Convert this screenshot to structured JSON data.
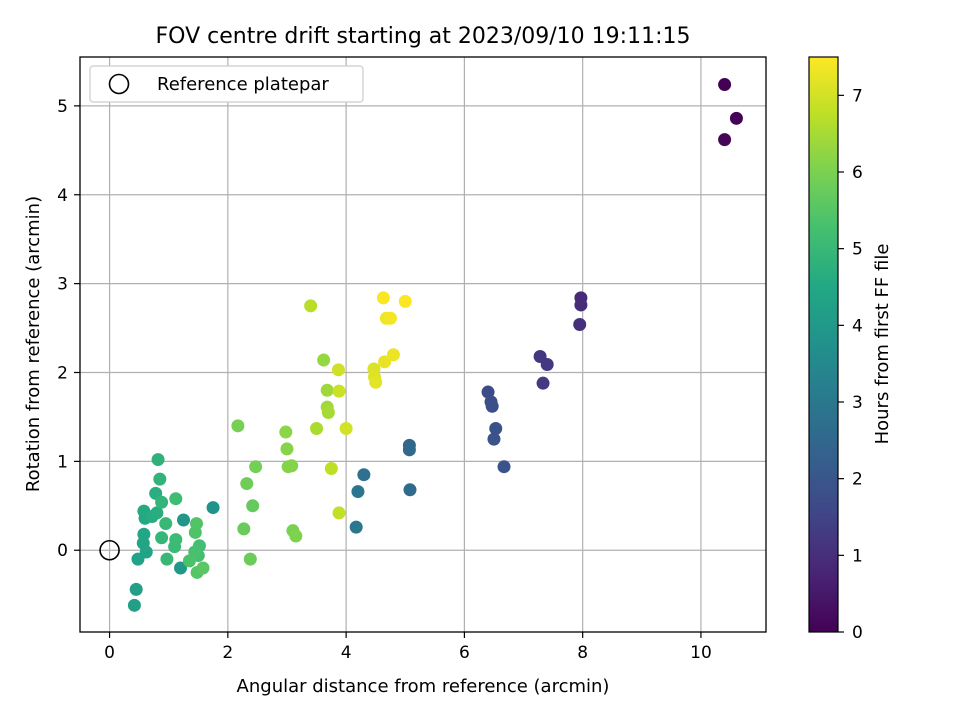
{
  "chart_data": {
    "type": "scatter",
    "title": "FOV centre drift starting at 2023/09/10 19:11:15",
    "xlabel": "Angular distance from reference (arcmin)",
    "ylabel": "Rotation from reference (arcmin)",
    "xlim": [
      -0.5,
      11.1
    ],
    "ylim": [
      -0.92,
      5.55
    ],
    "xticks": [
      0,
      2,
      4,
      6,
      8,
      10
    ],
    "yticks": [
      0,
      1,
      2,
      3,
      4,
      5
    ],
    "grid": true,
    "legend": {
      "position": "top-left",
      "entries": [
        "Reference platepar"
      ]
    },
    "reference_point": {
      "x": 0,
      "y": 0
    },
    "colorbar": {
      "label": "Hours from first FF file",
      "range": [
        0,
        7.5
      ],
      "ticks": [
        0,
        1,
        2,
        3,
        4,
        5,
        6,
        7
      ],
      "colormap": "viridis"
    },
    "points": [
      {
        "x": 10.4,
        "y": 5.24,
        "c": 0.0
      },
      {
        "x": 10.6,
        "y": 4.86,
        "c": 0.05
      },
      {
        "x": 10.4,
        "y": 4.62,
        "c": 0.1
      },
      {
        "x": 7.97,
        "y": 2.84,
        "c": 0.9
      },
      {
        "x": 7.97,
        "y": 2.76,
        "c": 0.95
      },
      {
        "x": 7.95,
        "y": 2.54,
        "c": 1.0
      },
      {
        "x": 7.28,
        "y": 2.18,
        "c": 1.2
      },
      {
        "x": 7.4,
        "y": 2.09,
        "c": 1.25
      },
      {
        "x": 7.33,
        "y": 1.88,
        "c": 1.3
      },
      {
        "x": 6.4,
        "y": 1.78,
        "c": 1.7
      },
      {
        "x": 6.45,
        "y": 1.67,
        "c": 1.75
      },
      {
        "x": 6.47,
        "y": 1.62,
        "c": 1.8
      },
      {
        "x": 6.53,
        "y": 1.37,
        "c": 1.85
      },
      {
        "x": 6.5,
        "y": 1.25,
        "c": 1.9
      },
      {
        "x": 6.67,
        "y": 0.94,
        "c": 1.95
      },
      {
        "x": 5.07,
        "y": 1.18,
        "c": 2.5
      },
      {
        "x": 5.07,
        "y": 1.13,
        "c": 2.55
      },
      {
        "x": 5.08,
        "y": 0.68,
        "c": 2.6
      },
      {
        "x": 4.3,
        "y": 0.85,
        "c": 2.8
      },
      {
        "x": 4.2,
        "y": 0.66,
        "c": 2.9
      },
      {
        "x": 4.17,
        "y": 0.26,
        "c": 3.0
      },
      {
        "x": 1.75,
        "y": 0.48,
        "c": 3.8
      },
      {
        "x": 1.25,
        "y": 0.34,
        "c": 3.9
      },
      {
        "x": 1.2,
        "y": -0.2,
        "c": 4.0
      },
      {
        "x": 0.42,
        "y": -0.62,
        "c": 4.2
      },
      {
        "x": 0.45,
        "y": -0.44,
        "c": 4.25
      },
      {
        "x": 0.48,
        "y": -0.1,
        "c": 4.3
      },
      {
        "x": 0.62,
        "y": -0.02,
        "c": 4.35
      },
      {
        "x": 0.57,
        "y": 0.08,
        "c": 4.4
      },
      {
        "x": 0.58,
        "y": 0.18,
        "c": 4.45
      },
      {
        "x": 0.6,
        "y": 0.36,
        "c": 4.5
      },
      {
        "x": 0.58,
        "y": 0.44,
        "c": 4.55
      },
      {
        "x": 0.72,
        "y": 0.38,
        "c": 4.6
      },
      {
        "x": 0.8,
        "y": 0.42,
        "c": 4.65
      },
      {
        "x": 0.78,
        "y": 0.64,
        "c": 4.7
      },
      {
        "x": 0.82,
        "y": 1.02,
        "c": 4.8
      },
      {
        "x": 0.85,
        "y": 0.8,
        "c": 4.85
      },
      {
        "x": 0.88,
        "y": 0.54,
        "c": 4.9
      },
      {
        "x": 0.88,
        "y": 0.14,
        "c": 4.95
      },
      {
        "x": 0.95,
        "y": 0.3,
        "c": 5.0
      },
      {
        "x": 0.97,
        "y": -0.1,
        "c": 5.0
      },
      {
        "x": 1.1,
        "y": 0.04,
        "c": 5.05
      },
      {
        "x": 1.12,
        "y": 0.12,
        "c": 5.1
      },
      {
        "x": 1.12,
        "y": 0.58,
        "c": 5.15
      },
      {
        "x": 1.52,
        "y": 0.05,
        "c": 5.2
      },
      {
        "x": 1.5,
        "y": -0.06,
        "c": 5.25
      },
      {
        "x": 1.44,
        "y": -0.02,
        "c": 5.3
      },
      {
        "x": 1.35,
        "y": -0.12,
        "c": 5.35
      },
      {
        "x": 1.45,
        "y": 0.2,
        "c": 5.4
      },
      {
        "x": 1.47,
        "y": 0.3,
        "c": 5.45
      },
      {
        "x": 1.48,
        "y": -0.25,
        "c": 5.5
      },
      {
        "x": 1.58,
        "y": -0.2,
        "c": 5.55
      },
      {
        "x": 2.42,
        "y": 0.5,
        "c": 5.7
      },
      {
        "x": 2.27,
        "y": 0.24,
        "c": 5.75
      },
      {
        "x": 2.38,
        "y": -0.1,
        "c": 5.8
      },
      {
        "x": 2.32,
        "y": 0.75,
        "c": 5.85
      },
      {
        "x": 2.47,
        "y": 0.94,
        "c": 5.9
      },
      {
        "x": 2.17,
        "y": 1.4,
        "c": 5.95
      },
      {
        "x": 3.1,
        "y": 0.22,
        "c": 6.0
      },
      {
        "x": 3.15,
        "y": 0.16,
        "c": 6.05
      },
      {
        "x": 3.02,
        "y": 0.94,
        "c": 6.1
      },
      {
        "x": 3.08,
        "y": 0.95,
        "c": 6.12
      },
      {
        "x": 3.0,
        "y": 1.14,
        "c": 6.15
      },
      {
        "x": 2.98,
        "y": 1.33,
        "c": 6.2
      },
      {
        "x": 3.62,
        "y": 2.14,
        "c": 6.3
      },
      {
        "x": 3.68,
        "y": 1.8,
        "c": 6.4
      },
      {
        "x": 3.68,
        "y": 1.61,
        "c": 6.45
      },
      {
        "x": 3.7,
        "y": 1.55,
        "c": 6.5
      },
      {
        "x": 3.5,
        "y": 1.37,
        "c": 6.55
      },
      {
        "x": 3.4,
        "y": 2.75,
        "c": 6.7
      },
      {
        "x": 3.75,
        "y": 0.92,
        "c": 6.75
      },
      {
        "x": 3.88,
        "y": 0.42,
        "c": 6.8
      },
      {
        "x": 3.88,
        "y": 1.79,
        "c": 6.9
      },
      {
        "x": 3.87,
        "y": 2.03,
        "c": 6.95
      },
      {
        "x": 4.0,
        "y": 1.37,
        "c": 7.0
      },
      {
        "x": 4.47,
        "y": 2.04,
        "c": 7.1
      },
      {
        "x": 4.48,
        "y": 1.95,
        "c": 7.15
      },
      {
        "x": 4.5,
        "y": 1.89,
        "c": 7.2
      },
      {
        "x": 4.65,
        "y": 2.12,
        "c": 7.25
      },
      {
        "x": 4.8,
        "y": 2.2,
        "c": 7.3
      },
      {
        "x": 4.68,
        "y": 2.61,
        "c": 7.35
      },
      {
        "x": 4.75,
        "y": 2.61,
        "c": 7.4
      },
      {
        "x": 4.63,
        "y": 2.84,
        "c": 7.45
      },
      {
        "x": 5.0,
        "y": 2.8,
        "c": 7.5
      }
    ]
  }
}
